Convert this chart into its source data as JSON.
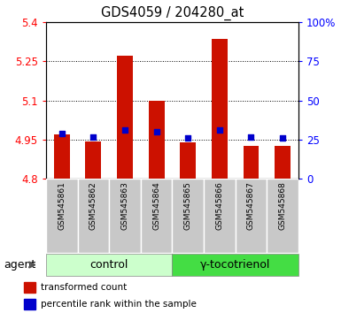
{
  "title": "GDS4059 / 204280_at",
  "samples": [
    "GSM545861",
    "GSM545862",
    "GSM545863",
    "GSM545864",
    "GSM545865",
    "GSM545866",
    "GSM545867",
    "GSM545868"
  ],
  "bar_values": [
    4.97,
    4.945,
    5.27,
    5.1,
    4.94,
    5.335,
    4.925,
    4.928
  ],
  "percentile_values": [
    29,
    27,
    31,
    30,
    26,
    31,
    27,
    26
  ],
  "ylim": [
    4.8,
    5.4
  ],
  "yticks": [
    4.8,
    4.95,
    5.1,
    5.25,
    5.4
  ],
  "ytick_labels": [
    "4.8",
    "4.95",
    "5.1",
    "5.25",
    "5.4"
  ],
  "y2lim": [
    0,
    100
  ],
  "y2ticks": [
    0,
    25,
    50,
    75,
    100
  ],
  "y2tick_labels": [
    "0",
    "25",
    "50",
    "75",
    "100%"
  ],
  "bar_color": "#cc1100",
  "point_color": "#0000cc",
  "bar_base": 4.8,
  "groups": [
    {
      "label": "control",
      "count": 4,
      "color": "#ccffcc"
    },
    {
      "label": "γ-tocotrienol",
      "count": 4,
      "color": "#44dd44"
    }
  ],
  "agent_label": "agent",
  "legend_items": [
    {
      "label": "transformed count",
      "color": "#cc1100"
    },
    {
      "label": "percentile rank within the sample",
      "color": "#0000cc"
    }
  ],
  "sample_box_color": "#c8c8c8",
  "plot_bg": "#ffffff",
  "fig_bg": "#ffffff"
}
